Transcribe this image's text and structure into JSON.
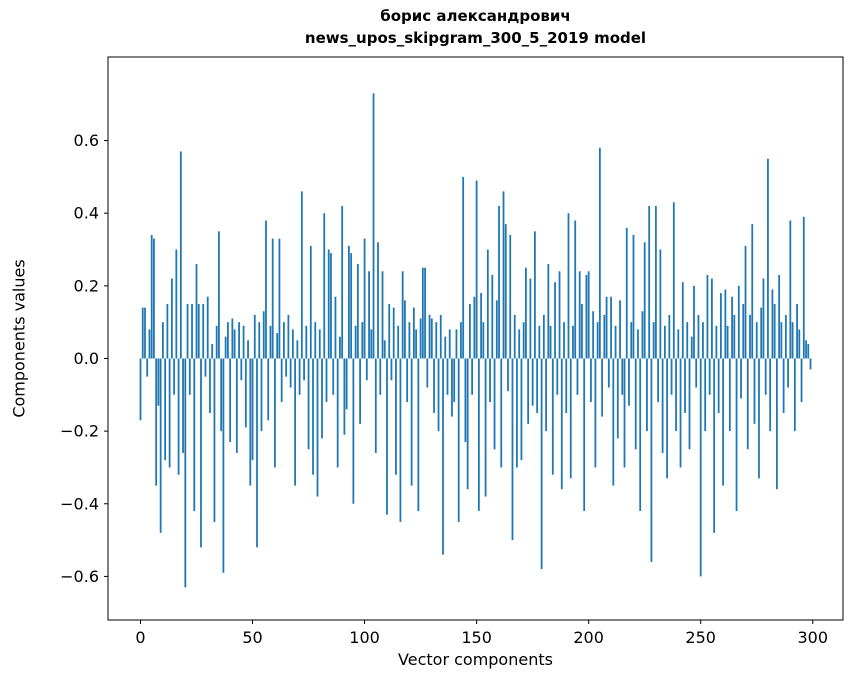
{
  "header": {
    "title": "борис александрович\nnews_upos_skipgram_300_5_2019 model"
  },
  "chart_data": {
    "type": "bar",
    "title": "борис александрович\nnews_upos_skipgram_300_5_2019 model",
    "xlabel": "Vector components",
    "ylabel": "Components values",
    "bar_color": "#1f77b4",
    "axis_color": "#000000",
    "background_color": "#ffffff",
    "xlim": [
      -14.5,
      313.5
    ],
    "ylim": [
      -0.72,
      0.83
    ],
    "grid": false,
    "legend": "none",
    "xticks": [
      0,
      50,
      100,
      150,
      200,
      250,
      300
    ],
    "xtick_labels": [
      "0",
      "50",
      "100",
      "150",
      "200",
      "250",
      "300"
    ],
    "yticks": [
      -0.6,
      -0.4,
      -0.2,
      0.0,
      0.2,
      0.4,
      0.6
    ],
    "ytick_labels": [
      "−0.6",
      "−0.4",
      "−0.2",
      "0.0",
      "0.2",
      "0.4",
      "0.6"
    ],
    "values": [
      -0.17,
      0.14,
      0.14,
      -0.05,
      0.08,
      0.34,
      0.33,
      -0.35,
      -0.13,
      -0.48,
      0.1,
      -0.28,
      0.15,
      -0.3,
      0.22,
      -0.1,
      0.3,
      -0.32,
      0.57,
      -0.26,
      -0.63,
      0.15,
      -0.1,
      0.15,
      -0.42,
      0.26,
      0.15,
      -0.52,
      0.15,
      -0.05,
      0.17,
      -0.15,
      0.04,
      -0.45,
      0.09,
      0.35,
      -0.2,
      -0.59,
      0.06,
      0.1,
      -0.23,
      0.11,
      0.08,
      -0.26,
      0.1,
      -0.06,
      0.09,
      -0.19,
      0.05,
      -0.35,
      -0.28,
      0.12,
      -0.52,
      0.1,
      -0.2,
      0.13,
      0.38,
      -0.17,
      0.09,
      0.33,
      -0.3,
      0.07,
      0.33,
      -0.12,
      0.1,
      -0.05,
      0.12,
      -0.08,
      0.08,
      -0.35,
      0.05,
      -0.1,
      0.46,
      -0.06,
      0.09,
      -0.25,
      0.31,
      -0.32,
      0.1,
      -0.38,
      0.08,
      -0.22,
      0.4,
      -0.12,
      0.3,
      0.29,
      -0.1,
      0.17,
      -0.3,
      0.06,
      0.42,
      -0.21,
      -0.14,
      0.31,
      0.29,
      -0.4,
      0.09,
      0.26,
      -0.18,
      0.1,
      0.33,
      -0.06,
      0.24,
      0.08,
      0.73,
      -0.26,
      0.32,
      -0.1,
      0.24,
      0.05,
      -0.43,
      0.15,
      -0.06,
      0.14,
      -0.32,
      0.09,
      -0.45,
      0.24,
      0.16,
      -0.12,
      0.1,
      -0.35,
      0.14,
      0.08,
      -0.42,
      0.11,
      0.25,
      0.25,
      -0.08,
      0.12,
      0.11,
      -0.15,
      0.1,
      -0.2,
      0.12,
      -0.54,
      0.06,
      -0.1,
      0.08,
      -0.16,
      -0.12,
      0.08,
      -0.45,
      0.1,
      0.5,
      -0.23,
      -0.36,
      0.15,
      -0.1,
      0.17,
      0.49,
      -0.42,
      0.18,
      0.1,
      -0.38,
      0.3,
      -0.12,
      0.23,
      -0.25,
      0.16,
      0.42,
      -0.3,
      0.46,
      0.37,
      -0.09,
      0.34,
      -0.5,
      0.12,
      -0.3,
      0.08,
      -0.28,
      0.1,
      0.25,
      -0.18,
      0.22,
      -0.13,
      0.35,
      -0.15,
      0.09,
      -0.58,
      0.12,
      -0.2,
      0.26,
      0.09,
      -0.32,
      0.21,
      -0.1,
      0.24,
      -0.36,
      0.1,
      -0.15,
      0.4,
      -0.33,
      0.09,
      0.38,
      -0.1,
      0.24,
      0.15,
      -0.42,
      0.23,
      0.24,
      -0.12,
      0.13,
      -0.3,
      0.1,
      0.58,
      -0.16,
      0.12,
      0.17,
      -0.08,
      0.17,
      -0.35,
      0.09,
      -0.22,
      0.16,
      -0.1,
      -0.3,
      0.36,
      -0.13,
      0.1,
      0.34,
      -0.25,
      0.08,
      -0.42,
      0.13,
      0.32,
      -0.2,
      0.42,
      -0.56,
      0.1,
      0.42,
      -0.12,
      0.3,
      -0.26,
      0.09,
      -0.33,
      0.12,
      -0.1,
      0.43,
      -0.2,
      0.08,
      -0.3,
      0.21,
      -0.15,
      0.1,
      -0.25,
      0.06,
      0.2,
      -0.08,
      0.12,
      -0.6,
      0.1,
      -0.2,
      0.23,
      -0.1,
      0.22,
      -0.48,
      0.09,
      -0.15,
      0.18,
      -0.35,
      0.19,
      0.09,
      -0.2,
      0.17,
      0.12,
      -0.42,
      0.2,
      -0.11,
      0.15,
      0.31,
      -0.25,
      0.12,
      0.37,
      -0.18,
      0.1,
      -0.33,
      0.14,
      0.22,
      -0.1,
      0.55,
      -0.2,
      0.19,
      0.15,
      -0.36,
      0.23,
      0.1,
      -0.15,
      0.12,
      -0.08,
      0.38,
      0.1,
      -0.2,
      0.15,
      0.08,
      -0.12,
      0.39,
      0.05,
      0.04,
      -0.03
    ]
  }
}
